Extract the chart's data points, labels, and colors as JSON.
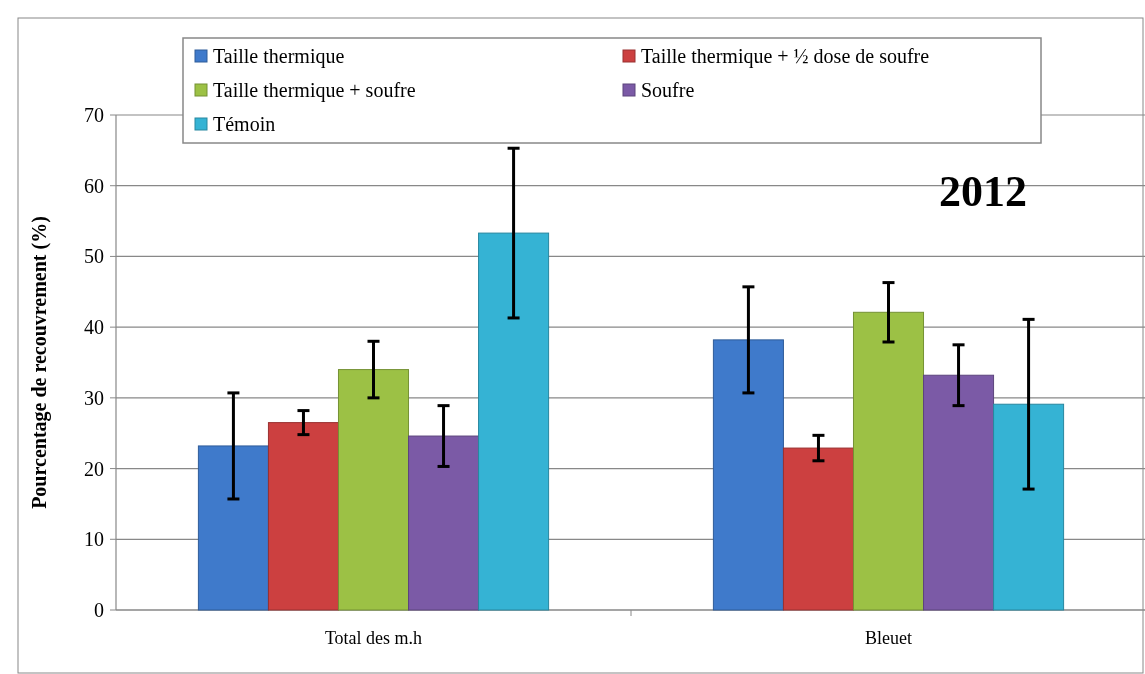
{
  "chart_data": {
    "type": "bar",
    "title": "2012",
    "ylabel": "Pourcentage de recouvrement (%)",
    "categories": [
      "Total des m.h",
      "Bleuet"
    ],
    "series": [
      {
        "name": "Taille thermique",
        "color": "#3f7acb",
        "values": [
          23.2,
          38.2
        ],
        "errors": [
          7.5,
          7.5
        ]
      },
      {
        "name": "Taille thermique + ½ dose de soufre",
        "color": "#cc4040",
        "values": [
          26.5,
          22.9
        ],
        "errors": [
          1.7,
          1.8
        ]
      },
      {
        "name": "Taille thermique + soufre",
        "color": "#9cc145",
        "values": [
          34.0,
          42.1
        ],
        "errors": [
          4.0,
          4.2
        ]
      },
      {
        "name": "Soufre",
        "color": "#7b5aa6",
        "values": [
          24.6,
          33.2
        ],
        "errors": [
          4.3,
          4.3
        ]
      },
      {
        "name": "Témoin",
        "color": "#35b3d4",
        "values": [
          53.3,
          29.1
        ],
        "errors": [
          12,
          12
        ]
      }
    ],
    "ylim": [
      0,
      70
    ],
    "yticks": [
      0,
      10,
      20,
      30,
      40,
      50,
      60,
      70
    ],
    "grid": "y",
    "legend": "top"
  }
}
